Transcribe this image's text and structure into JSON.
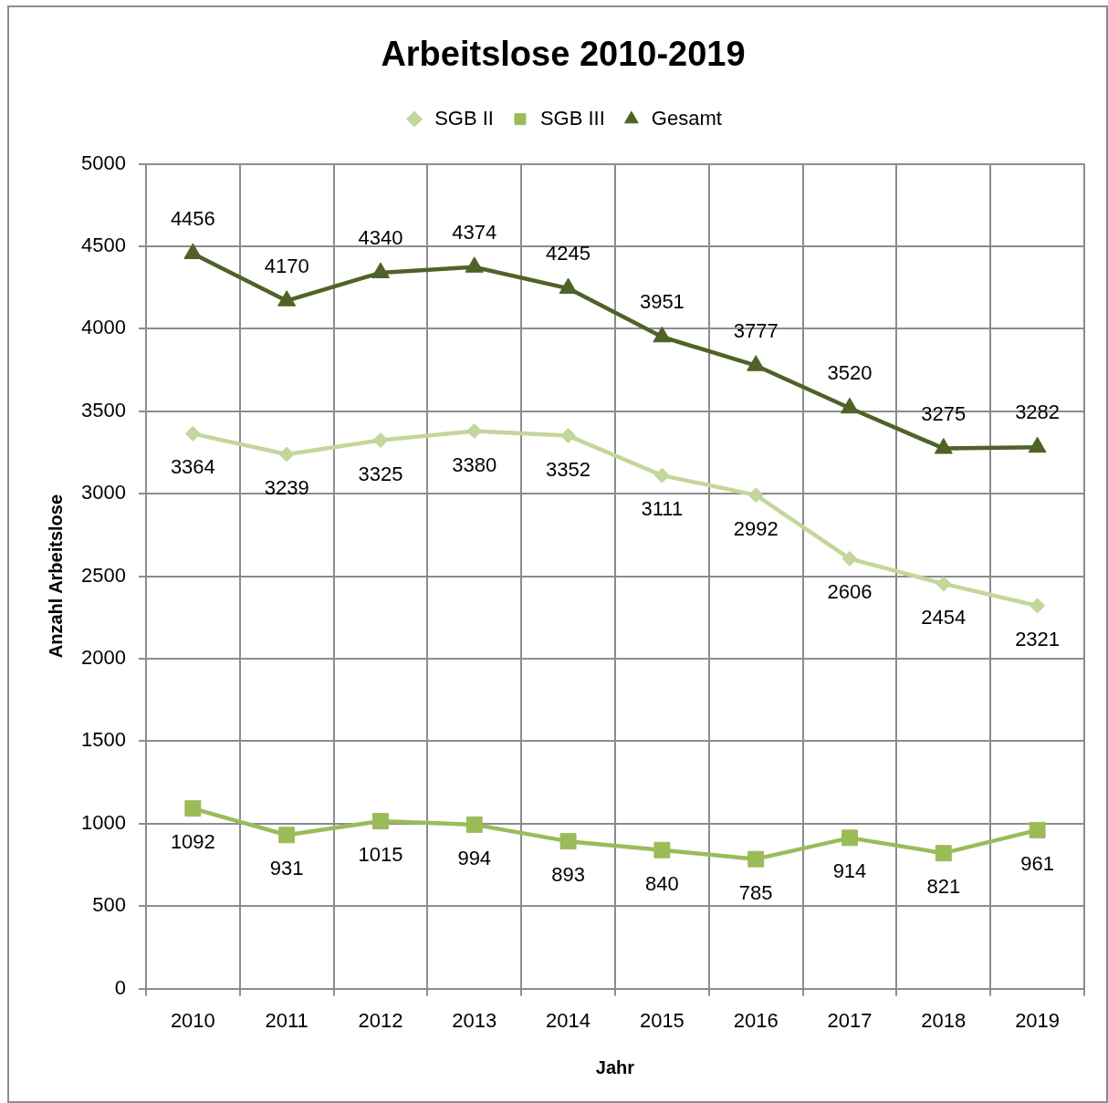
{
  "chart_data": {
    "type": "line",
    "title": "Arbeitslose 2010-2019",
    "xlabel": "Jahr",
    "ylabel": "Anzahl Arbeitslose",
    "categories": [
      "2010",
      "2011",
      "2012",
      "2013",
      "2014",
      "2015",
      "2016",
      "2017",
      "2018",
      "2019"
    ],
    "series": [
      {
        "name": "SGB II",
        "color": "#c3d69b",
        "marker": "diamond",
        "values": [
          3364,
          3239,
          3325,
          3380,
          3352,
          3111,
          2992,
          2606,
          2454,
          2321
        ]
      },
      {
        "name": "SGB III",
        "color": "#9bbb59",
        "marker": "square",
        "values": [
          1092,
          931,
          1015,
          994,
          893,
          840,
          785,
          914,
          821,
          961
        ]
      },
      {
        "name": "Gesamt",
        "color": "#4f6228",
        "marker": "triangle",
        "values": [
          4456,
          4170,
          4340,
          4374,
          4245,
          3951,
          3777,
          3520,
          3275,
          3282
        ]
      }
    ],
    "ylim": [
      0,
      5000
    ],
    "yticks": [
      0,
      500,
      1000,
      1500,
      2000,
      2500,
      3000,
      3500,
      4000,
      4500,
      5000
    ],
    "grid": true,
    "legend": "top",
    "data_labels": true,
    "line_style": "solid"
  }
}
